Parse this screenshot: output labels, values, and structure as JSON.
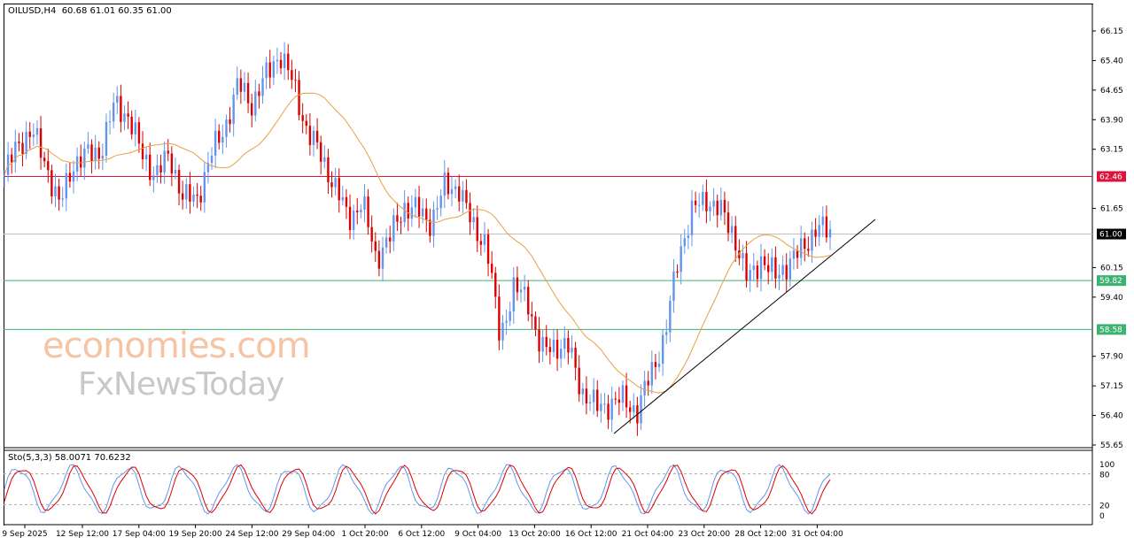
{
  "header": {
    "symbol": "OILUSD,H4",
    "ohlc": "60.68 61.01 60.35 61.00"
  },
  "indicator": {
    "label": "Sto(5,3,3) 58.0071 70.6232",
    "levels": [
      "100",
      "80",
      "20",
      "0"
    ]
  },
  "watermark": {
    "line1": "economies.com",
    "line2": "FxNewsToday"
  },
  "price_axis": [
    "66.15",
    "65.40",
    "64.65",
    "63.90",
    "63.15",
    "61.65",
    "60.15",
    "59.40",
    "57.90",
    "57.15",
    "56.40",
    "55.65"
  ],
  "levels": [
    {
      "label": "62.46",
      "value": 62.46,
      "color": "#dc143c"
    },
    {
      "label": "61.00",
      "value": 61.0,
      "color": "#000000"
    },
    {
      "label": "59.82",
      "value": 59.82,
      "color": "#3cb371"
    },
    {
      "label": "58.58",
      "value": 58.58,
      "color": "#3cb371"
    }
  ],
  "time_axis": [
    "9 Sep 2025",
    "12 Sep 12:00",
    "17 Sep 04:00",
    "19 Sep 20:00",
    "24 Sep 12:00",
    "29 Sep 04:00",
    "1 Oct 20:00",
    "6 Oct 12:00",
    "9 Oct 04:00",
    "13 Oct 20:00",
    "16 Oct 12:00",
    "21 Oct 04:00",
    "23 Oct 20:00",
    "28 Oct 12:00",
    "31 Oct 04:00"
  ],
  "colors": {
    "bull": "#6495ed",
    "bear": "#dc0000",
    "ma": "#e8a040",
    "trendline": "#000000"
  },
  "chart_data": {
    "type": "candlestick",
    "approx_close_path": [
      62.5,
      63.3,
      63.6,
      62.8,
      61.7,
      62.8,
      63,
      63.1,
      64.3,
      64,
      63,
      62.5,
      63,
      61.9,
      61.9,
      63,
      63.7,
      64.8,
      64.3,
      65,
      65.6,
      64.8,
      63.6,
      63,
      62.2,
      61.4,
      61.8,
      60.4,
      60.9,
      61.7,
      61.6,
      61.3,
      62.2,
      62.2,
      61.2,
      60.8,
      58.4,
      59.6,
      59.4,
      58,
      58.2,
      58.1,
      57,
      56.6,
      56.7,
      56.8,
      56.5,
      57.5,
      58.4,
      60.5,
      61.6,
      61.9,
      61.6,
      61,
      59.8,
      60.4,
      59.9,
      60.3,
      60.6,
      61.2,
      61.0
    ]
  }
}
